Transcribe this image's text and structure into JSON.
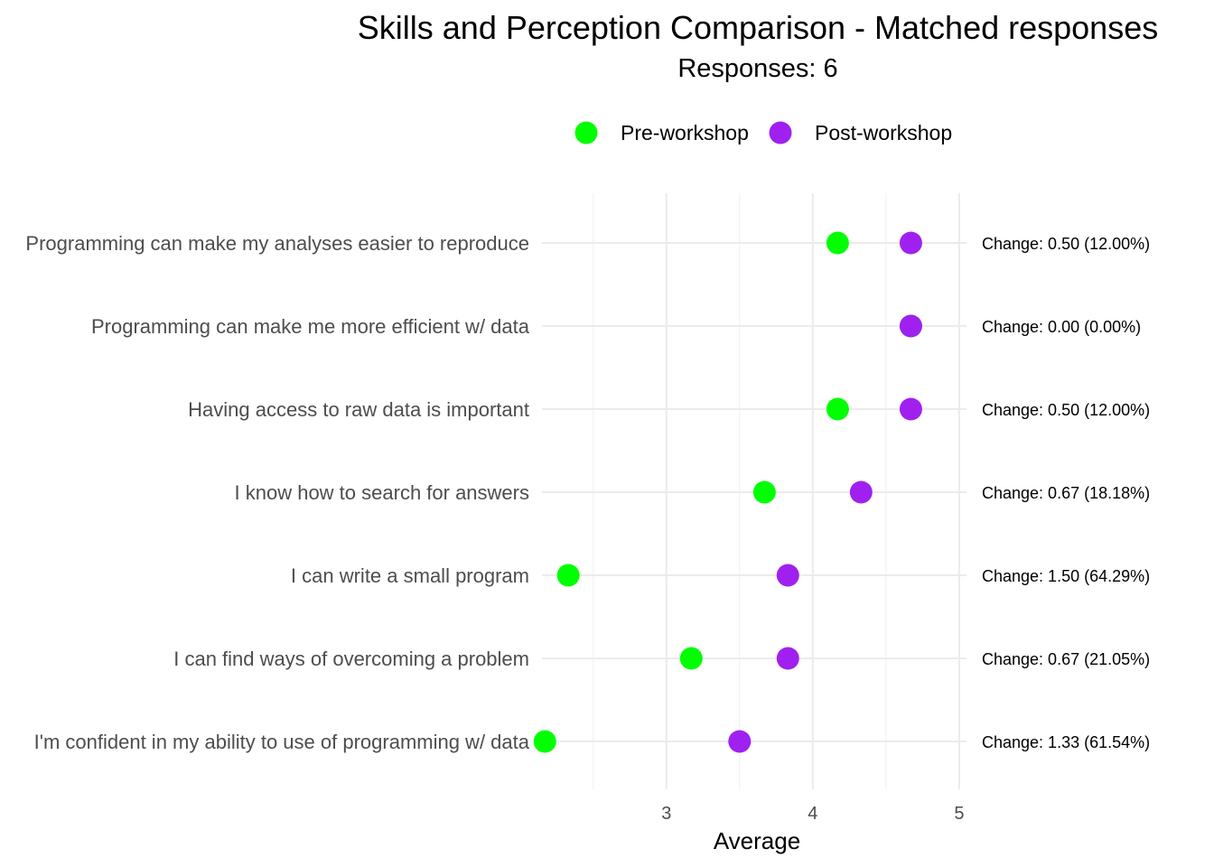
{
  "chart_data": {
    "type": "scatter",
    "title": "Skills and Perception Comparison - Matched responses",
    "subtitle": "Responses: 6",
    "xlabel": "Average",
    "ylabel": "",
    "xlim": [
      2.15,
      5.05
    ],
    "xticks": [
      3,
      4,
      5
    ],
    "grid": true,
    "legend_position": "top",
    "categories": [
      "Programming can make my analyses easier to reproduce",
      "Programming can make me more efficient w/ data",
      "Having access to raw data is important",
      "I know how to search for answers",
      "I can write a small program",
      "I can find ways of overcoming a problem",
      "I'm confident in my ability to use of programming w/ data"
    ],
    "series": [
      {
        "name": "Pre-workshop",
        "color": "#00FF00",
        "values": [
          4.17,
          4.67,
          4.17,
          3.67,
          2.33,
          3.17,
          2.17
        ]
      },
      {
        "name": "Post-workshop",
        "color": "#A020F0",
        "values": [
          4.67,
          4.67,
          4.67,
          4.33,
          3.83,
          3.83,
          3.5
        ]
      }
    ],
    "annotations": [
      "Change: 0.50 (12.00%)",
      "Change: 0.00 (0.00%)",
      "Change: 0.50 (12.00%)",
      "Change: 0.67 (18.18%)",
      "Change: 1.50 (64.29%)",
      "Change: 0.67 (21.05%)",
      "Change: 1.33 (61.54%)"
    ]
  }
}
